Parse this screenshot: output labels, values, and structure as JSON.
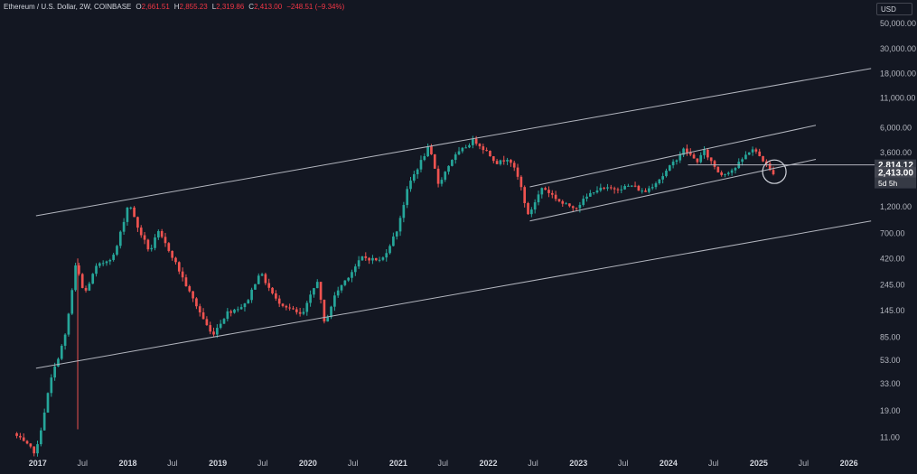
{
  "legend": {
    "symbol": "Ethereum / U.S. Dollar, 2W, COINBASE",
    "open_label": "O",
    "open": "2,661.51",
    "high_label": "H",
    "high": "2,855.23",
    "low_label": "L",
    "low": "2,319.86",
    "close_label": "C",
    "close": "2,413.00",
    "change": "−248.51 (−9.34%)"
  },
  "currency": "USD",
  "colors": {
    "background": "#131722",
    "up": "#26a69a",
    "down": "#ef5350",
    "trendline": "#b2b5be",
    "axis_text": "#b2b5be",
    "price_label_bg": "#363a45",
    "current_price_bg": "#434651"
  },
  "chart_data": {
    "type": "candlestick",
    "y_scale": "log",
    "ylim": [
      8,
      60000
    ],
    "xlim": [
      "2016-08-01",
      "2026-04-15"
    ],
    "y_ticks": [
      "50,000.00",
      "30,000.00",
      "18,000.00",
      "11,000.00",
      "6,000.00",
      "3,600.00",
      "1,200.00",
      "700.00",
      "420.00",
      "245.00",
      "145.00",
      "85.00",
      "53.00",
      "33.00",
      "19.00",
      "11.00"
    ],
    "y_tick_values": [
      50000,
      30000,
      18000,
      11000,
      6000,
      3600,
      1200,
      700,
      420,
      245,
      145,
      85,
      53,
      33,
      19,
      11
    ],
    "x_ticks": [
      {
        "label": "2017",
        "date": "2017-01-01",
        "bold": true
      },
      {
        "label": "Jul",
        "date": "2017-07-01",
        "bold": false
      },
      {
        "label": "2018",
        "date": "2018-01-01",
        "bold": true
      },
      {
        "label": "Jul",
        "date": "2018-07-01",
        "bold": false
      },
      {
        "label": "2019",
        "date": "2019-01-01",
        "bold": true
      },
      {
        "label": "Jul",
        "date": "2019-07-01",
        "bold": false
      },
      {
        "label": "2020",
        "date": "2020-01-01",
        "bold": true
      },
      {
        "label": "Jul",
        "date": "2020-07-01",
        "bold": false
      },
      {
        "label": "2021",
        "date": "2021-01-01",
        "bold": true
      },
      {
        "label": "Jul",
        "date": "2021-07-01",
        "bold": false
      },
      {
        "label": "2022",
        "date": "2022-01-01",
        "bold": true
      },
      {
        "label": "Jul",
        "date": "2022-07-01",
        "bold": false
      },
      {
        "label": "2023",
        "date": "2023-01-01",
        "bold": true
      },
      {
        "label": "Jul",
        "date": "2023-07-01",
        "bold": false
      },
      {
        "label": "2024",
        "date": "2024-01-01",
        "bold": true
      },
      {
        "label": "Jul",
        "date": "2024-07-01",
        "bold": false
      },
      {
        "label": "2025",
        "date": "2025-01-01",
        "bold": true
      },
      {
        "label": "Jul",
        "date": "2025-07-01",
        "bold": false
      },
      {
        "label": "2026",
        "date": "2026-01-01",
        "bold": true
      }
    ],
    "price_anchors": [
      [
        "2016-10-01",
        12
      ],
      [
        "2017-01-01",
        8
      ],
      [
        "2017-03-01",
        35
      ],
      [
        "2017-05-01",
        90
      ],
      [
        "2017-06-12",
        380
      ],
      [
        "2017-07-15",
        200
      ],
      [
        "2017-09-01",
        350
      ],
      [
        "2017-11-15",
        450
      ],
      [
        "2018-01-13",
        1350
      ],
      [
        "2018-02-10",
        850
      ],
      [
        "2018-04-07",
        480
      ],
      [
        "2018-05-10",
        720
      ],
      [
        "2018-07-01",
        470
      ],
      [
        "2018-09-15",
        210
      ],
      [
        "2018-12-15",
        88
      ],
      [
        "2019-02-15",
        140
      ],
      [
        "2019-05-01",
        165
      ],
      [
        "2019-06-26",
        320
      ],
      [
        "2019-09-01",
        180
      ],
      [
        "2019-12-15",
        130
      ],
      [
        "2020-02-15",
        270
      ],
      [
        "2020-03-15",
        110
      ],
      [
        "2020-05-01",
        210
      ],
      [
        "2020-08-15",
        430
      ],
      [
        "2020-11-01",
        400
      ],
      [
        "2021-01-01",
        730
      ],
      [
        "2021-02-20",
        1900
      ],
      [
        "2021-05-12",
        4100
      ],
      [
        "2021-06-20",
        1900
      ],
      [
        "2021-08-15",
        3200
      ],
      [
        "2021-11-10",
        4700
      ],
      [
        "2022-01-01",
        3700
      ],
      [
        "2022-02-15",
        2900
      ],
      [
        "2022-04-01",
        3300
      ],
      [
        "2022-05-15",
        2000
      ],
      [
        "2022-06-18",
        1000
      ],
      [
        "2022-08-15",
        1800
      ],
      [
        "2022-11-10",
        1250
      ],
      [
        "2022-12-31",
        1200
      ],
      [
        "2023-03-15",
        1700
      ],
      [
        "2023-06-15",
        1750
      ],
      [
        "2023-08-15",
        1850
      ],
      [
        "2023-10-01",
        1600
      ],
      [
        "2023-12-15",
        2250
      ],
      [
        "2024-03-12",
        3900
      ],
      [
        "2024-05-01",
        3000
      ],
      [
        "2024-06-01",
        3700
      ],
      [
        "2024-08-05",
        2300
      ],
      [
        "2024-10-01",
        2600
      ],
      [
        "2024-12-10",
        3950
      ],
      [
        "2025-01-15",
        3300
      ],
      [
        "2025-02-10",
        2800
      ],
      [
        "2025-02-26",
        2413
      ]
    ],
    "wick_highlights": [
      {
        "date": "2017-06-12",
        "low": 13,
        "high": 420,
        "color": "down"
      }
    ],
    "trendlines": [
      {
        "name": "outer-upper-channel",
        "from": [
          "2016-12-25",
          1000
        ],
        "to": [
          "2026-04-01",
          20000
        ]
      },
      {
        "name": "outer-lower-channel",
        "from": [
          "2016-12-25",
          45
        ],
        "to": [
          "2026-04-01",
          900
        ]
      },
      {
        "name": "inner-upper-channel",
        "from": [
          "2022-06-18",
          1800
        ],
        "to": [
          "2025-08-20",
          6300
        ]
      },
      {
        "name": "inner-lower-channel",
        "from": [
          "2022-06-18",
          900
        ],
        "to": [
          "2025-08-20",
          3150
        ]
      },
      {
        "name": "support-horizontal",
        "from": [
          "2024-03-20",
          2814.12
        ],
        "to": [
          "2026-04-15",
          2814.12
        ]
      }
    ],
    "highlight_circle": {
      "date": "2025-03-05",
      "value": 2450
    },
    "price_labels": [
      {
        "text": "2,814.12",
        "value": 2814.12,
        "kind": "level"
      },
      {
        "text": "2,413.00",
        "value": 2413.0,
        "kind": "current"
      },
      {
        "text": "5d 5h",
        "value": 1950,
        "kind": "countdown"
      }
    ]
  }
}
